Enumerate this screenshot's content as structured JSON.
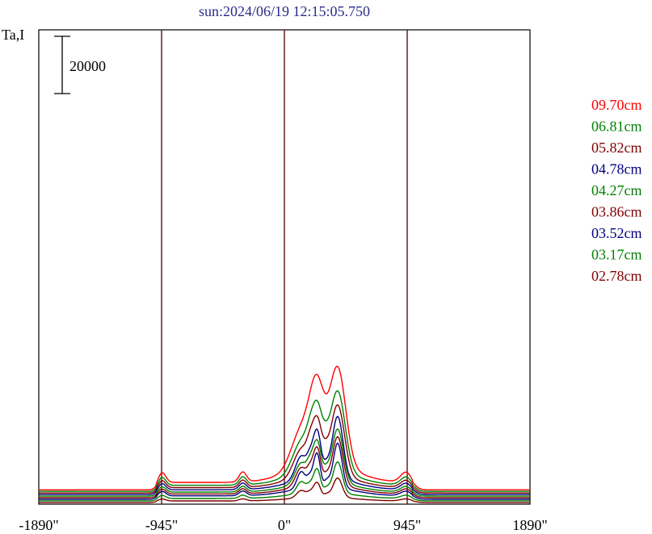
{
  "title": "sun:2024/06/19 12:15:05.750",
  "chart_data": {
    "type": "line",
    "ylabel": "Ta,I",
    "scale_bar_label": "20000",
    "scale_bar_value": 20000,
    "xlim": [
      -1890,
      1890
    ],
    "xticks": [
      {
        "value": -1890,
        "label": "-1890\""
      },
      {
        "value": -945,
        "label": "-945\""
      },
      {
        "value": 0,
        "label": "0\""
      },
      {
        "value": 945,
        "label": "945\""
      },
      {
        "value": 1890,
        "label": "1890\""
      }
    ],
    "vlines": [
      -945,
      0,
      945
    ],
    "grid": false,
    "legend_position": "right",
    "series": [
      {
        "name": "09.70cm",
        "color": "#ff0000",
        "baseline": 5000,
        "amp": 1.0,
        "narrow": 0
      },
      {
        "name": "06.81cm",
        "color": "#008000",
        "baseline": 4450,
        "amp": 0.82,
        "narrow": 0.15
      },
      {
        "name": "05.82cm",
        "color": "#800000",
        "baseline": 3900,
        "amp": 0.72,
        "narrow": 0.3
      },
      {
        "name": "04.78cm",
        "color": "#000080",
        "baseline": 3350,
        "amp": 0.64,
        "narrow": 0.6
      },
      {
        "name": "04.27cm",
        "color": "#008000",
        "baseline": 2800,
        "amp": 0.55,
        "narrow": 0.55
      },
      {
        "name": "03.86cm",
        "color": "#800000",
        "baseline": 2250,
        "amp": 0.5,
        "narrow": 0.65
      },
      {
        "name": "03.52cm",
        "color": "#000080",
        "baseline": 1700,
        "amp": 0.46,
        "narrow": 0.85
      },
      {
        "name": "03.17cm",
        "color": "#008000",
        "baseline": 1150,
        "amp": 0.32,
        "narrow": 0.8
      },
      {
        "name": "02.78cm",
        "color": "#800000",
        "baseline": 600,
        "amp": 0.2,
        "narrow": 0.8
      }
    ]
  }
}
